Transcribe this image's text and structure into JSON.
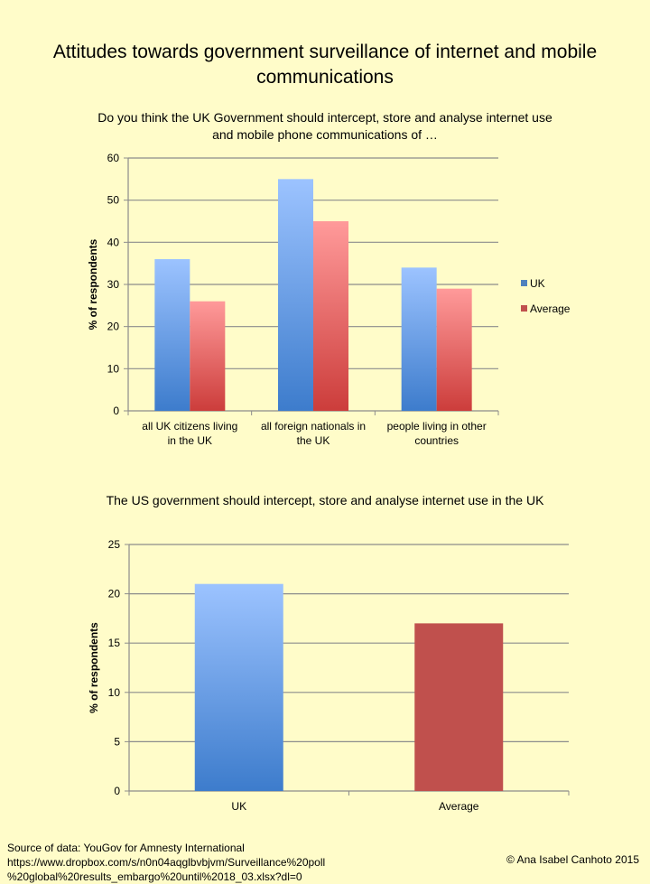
{
  "title": "Attitudes towards government surveillance of internet and mobile communications",
  "colors": {
    "uk": "#4f81bd",
    "average": "#c0504d",
    "background": "#fffcc9"
  },
  "chart_data": [
    {
      "type": "bar",
      "title": "Do you think the UK Government should intercept, store and analyse internet use and mobile phone communications of …",
      "ylabel": "% of respondents",
      "ylim": [
        0,
        60
      ],
      "yticks": [
        0,
        10,
        20,
        30,
        40,
        50,
        60
      ],
      "grid": true,
      "legend": "right",
      "categories": [
        "all UK citizens living in the UK",
        "all foreign nationals in the UK",
        "people living in other countries"
      ],
      "series": [
        {
          "name": "UK",
          "values": [
            36,
            55,
            34
          ]
        },
        {
          "name": "Average",
          "values": [
            26,
            45,
            29
          ]
        }
      ]
    },
    {
      "type": "bar",
      "title": "The US government should intercept, store and analyse internet use in the UK",
      "ylabel": "% of respondents",
      "ylim": [
        0,
        25
      ],
      "yticks": [
        0,
        5,
        10,
        15,
        20,
        25
      ],
      "grid": true,
      "categories": [
        "UK",
        "Average"
      ],
      "values": [
        21,
        17
      ]
    }
  ],
  "source": "Source of data: YouGov for Amnesty International https://www.dropbox.com/s/n0n04aqglbvbjvm/Surveillance%20poll %20global%20results_embargo%20until%2018_03.xlsx?dl=0",
  "copyright": "© Ana Isabel Canhoto 2015"
}
